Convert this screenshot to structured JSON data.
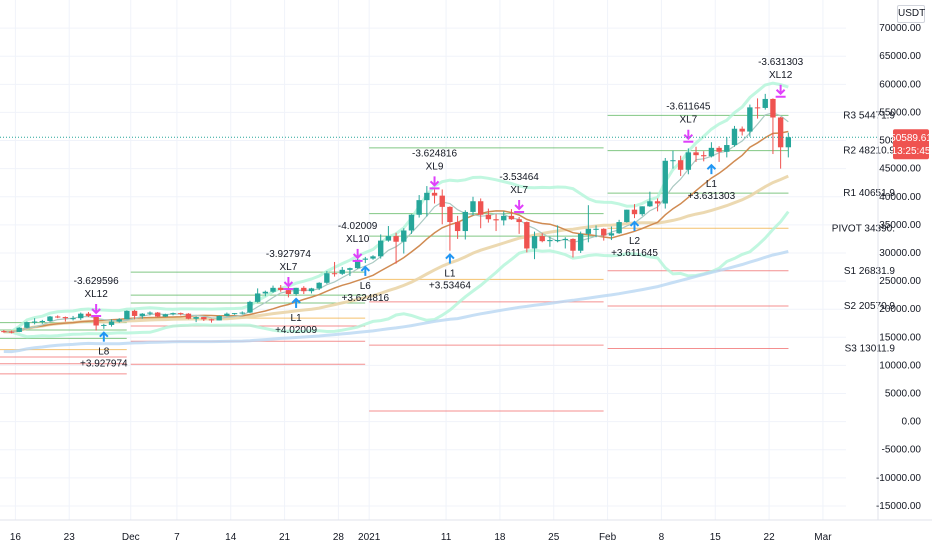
{
  "currency": "USDT",
  "price_tag": {
    "value": "50589.61",
    "countdown": "13:25:45",
    "color": "#ef5350"
  },
  "colors": {
    "up": "#26a69a",
    "down": "#ef5350",
    "buy_arrow": "#2196f3",
    "sell_arrow": "#e040fb",
    "bb": "#b2f5d8",
    "ma_fast": "#aac9c2",
    "ma_mid": "#d08b52",
    "ma_slow": "#ead5a8",
    "ma_long": "#b9d7f2",
    "pivot_r": "#4caf50",
    "pivot_p": "#f0a830",
    "pivot_s": "#f06060"
  },
  "chart_data": {
    "type": "candlestick",
    "y_axis": {
      "ylim": [
        -17500,
        75000
      ],
      "ticks": [
        "70000.00",
        "65000.00",
        "60000.00",
        "55000.00",
        "50000.00",
        "45000.00",
        "40000.00",
        "35000.00",
        "30000.00",
        "25000.00",
        "20000.00",
        "15000.00",
        "10000.00",
        "5000.00",
        "0.00",
        "-5000.00",
        "-10000.00",
        "-15000.00"
      ],
      "tick_values": [
        70000,
        65000,
        60000,
        55000,
        50000,
        45000,
        40000,
        35000,
        30000,
        25000,
        20000,
        15000,
        10000,
        5000,
        0,
        -5000,
        -10000,
        -15000
      ]
    },
    "x_axis": {
      "start": "2020-11-14",
      "end": "2021-03-04",
      "labels": [
        {
          "date": "2020-11-16",
          "text": "16"
        },
        {
          "date": "2020-11-23",
          "text": "23"
        },
        {
          "date": "2020-12-01",
          "text": "Dec"
        },
        {
          "date": "2020-12-07",
          "text": "7"
        },
        {
          "date": "2020-12-14",
          "text": "14"
        },
        {
          "date": "2020-12-21",
          "text": "21"
        },
        {
          "date": "2020-12-28",
          "text": "28"
        },
        {
          "date": "2021-01-01",
          "text": "2021"
        },
        {
          "date": "2021-01-11",
          "text": "11"
        },
        {
          "date": "2021-01-18",
          "text": "18"
        },
        {
          "date": "2021-01-25",
          "text": "25"
        },
        {
          "date": "2021-02-01",
          "text": "Feb"
        },
        {
          "date": "2021-02-08",
          "text": "8"
        },
        {
          "date": "2021-02-15",
          "text": "15"
        },
        {
          "date": "2021-02-22",
          "text": "22"
        },
        {
          "date": "2021-03-01",
          "text": "Mar"
        }
      ]
    },
    "candles": [
      [
        "2020-11-14",
        16100,
        16300,
        15800,
        16000
      ],
      [
        "2020-11-15",
        16000,
        16200,
        15700,
        15950
      ],
      [
        "2020-11-16",
        15950,
        16800,
        15900,
        16700
      ],
      [
        "2020-11-17",
        16700,
        17800,
        16600,
        17700
      ],
      [
        "2020-11-18",
        17700,
        18400,
        17300,
        17800
      ],
      [
        "2020-11-19",
        17800,
        18100,
        17400,
        17900
      ],
      [
        "2020-11-20",
        17900,
        18800,
        17800,
        18700
      ],
      [
        "2020-11-21",
        18700,
        18900,
        18400,
        18600
      ],
      [
        "2020-11-22",
        18600,
        18700,
        17800,
        18400
      ],
      [
        "2020-11-23",
        18400,
        18800,
        18000,
        18400
      ],
      [
        "2020-11-24",
        18400,
        19400,
        18100,
        19200
      ],
      [
        "2020-11-25",
        19200,
        19500,
        18600,
        18800
      ],
      [
        "2020-11-26",
        18800,
        18900,
        16200,
        17100
      ],
      [
        "2020-11-27",
        17100,
        17400,
        16500,
        17200
      ],
      [
        "2020-11-28",
        17200,
        18200,
        16900,
        17800
      ],
      [
        "2020-11-29",
        17800,
        18400,
        17600,
        18200
      ],
      [
        "2020-11-30",
        18200,
        19800,
        18200,
        19700
      ],
      [
        "2020-12-01",
        19700,
        19900,
        18200,
        18800
      ],
      [
        "2020-12-02",
        18800,
        19300,
        18300,
        19200
      ],
      [
        "2020-12-03",
        19200,
        19600,
        18900,
        19400
      ],
      [
        "2020-12-04",
        19400,
        19500,
        18600,
        18700
      ],
      [
        "2020-12-05",
        18700,
        19200,
        18600,
        19100
      ],
      [
        "2020-12-06",
        19100,
        19400,
        18900,
        19300
      ],
      [
        "2020-12-07",
        19300,
        19400,
        18900,
        19200
      ],
      [
        "2020-12-08",
        19200,
        19300,
        18200,
        18300
      ],
      [
        "2020-12-09",
        18300,
        18700,
        17700,
        18600
      ],
      [
        "2020-12-10",
        18600,
        18600,
        17900,
        18200
      ],
      [
        "2020-12-11",
        18200,
        18300,
        17600,
        18000
      ],
      [
        "2020-12-12",
        18000,
        18900,
        18000,
        18800
      ],
      [
        "2020-12-13",
        18800,
        19400,
        18700,
        19200
      ],
      [
        "2020-12-14",
        19200,
        19300,
        19000,
        19300
      ],
      [
        "2020-12-15",
        19300,
        19600,
        19100,
        19400
      ],
      [
        "2020-12-16",
        19400,
        21500,
        19300,
        21300
      ],
      [
        "2020-12-17",
        21300,
        23700,
        21200,
        22800
      ],
      [
        "2020-12-18",
        22800,
        23300,
        22300,
        23100
      ],
      [
        "2020-12-19",
        23100,
        24200,
        22900,
        23800
      ],
      [
        "2020-12-20",
        23800,
        24300,
        23100,
        23400
      ],
      [
        "2020-12-21",
        23400,
        24100,
        22100,
        22700
      ],
      [
        "2020-12-22",
        22700,
        23800,
        22400,
        23800
      ],
      [
        "2020-12-23",
        23800,
        24100,
        22700,
        23200
      ],
      [
        "2020-12-24",
        23200,
        23800,
        22800,
        23700
      ],
      [
        "2020-12-25",
        23700,
        24800,
        23400,
        24700
      ],
      [
        "2020-12-26",
        24700,
        26800,
        24500,
        26400
      ],
      [
        "2020-12-27",
        26400,
        28400,
        25800,
        26300
      ],
      [
        "2020-12-28",
        26300,
        27500,
        26100,
        27000
      ],
      [
        "2020-12-29",
        27000,
        27400,
        25900,
        27300
      ],
      [
        "2020-12-30",
        27300,
        29000,
        27200,
        28800
      ],
      [
        "2020-12-31",
        28800,
        29300,
        28200,
        29000
      ],
      [
        "2021-01-01",
        29000,
        29600,
        28800,
        29400
      ],
      [
        "2021-01-02",
        29400,
        33300,
        29000,
        32200
      ],
      [
        "2021-01-03",
        32200,
        34800,
        32000,
        33000
      ],
      [
        "2021-01-04",
        33000,
        33600,
        28100,
        32000
      ],
      [
        "2021-01-05",
        32000,
        34400,
        29900,
        34000
      ],
      [
        "2021-01-06",
        34000,
        36900,
        33400,
        36800
      ],
      [
        "2021-01-07",
        36800,
        40300,
        36300,
        39400
      ],
      [
        "2021-01-08",
        39400,
        41900,
        36500,
        40700
      ],
      [
        "2021-01-09",
        40700,
        41300,
        38800,
        40200
      ],
      [
        "2021-01-10",
        40200,
        41300,
        35100,
        38200
      ],
      [
        "2021-01-11",
        38200,
        38300,
        30400,
        35500
      ],
      [
        "2021-01-12",
        35500,
        36600,
        32500,
        33900
      ],
      [
        "2021-01-13",
        33900,
        37600,
        32400,
        37300
      ],
      [
        "2021-01-14",
        37300,
        40000,
        36700,
        39200
      ],
      [
        "2021-01-15",
        39200,
        39700,
        34400,
        36800
      ],
      [
        "2021-01-16",
        36800,
        37900,
        35400,
        36000
      ],
      [
        "2021-01-17",
        36000,
        36900,
        33900,
        35800
      ],
      [
        "2021-01-18",
        35800,
        37400,
        34900,
        36600
      ],
      [
        "2021-01-19",
        36600,
        37800,
        35900,
        36000
      ],
      [
        "2021-01-20",
        36000,
        36400,
        33400,
        35500
      ],
      [
        "2021-01-21",
        35500,
        35600,
        30100,
        30800
      ],
      [
        "2021-01-22",
        30800,
        33800,
        28900,
        33000
      ],
      [
        "2021-01-23",
        33000,
        33500,
        31900,
        32100
      ],
      [
        "2021-01-24",
        32100,
        32900,
        31100,
        32300
      ],
      [
        "2021-01-25",
        32300,
        34900,
        31900,
        32300
      ],
      [
        "2021-01-26",
        32300,
        32800,
        30800,
        32500
      ],
      [
        "2021-01-27",
        32500,
        32600,
        29200,
        30400
      ],
      [
        "2021-01-28",
        30400,
        33800,
        30000,
        33400
      ],
      [
        "2021-01-29",
        33400,
        38500,
        31900,
        34300
      ],
      [
        "2021-01-30",
        34300,
        34900,
        32800,
        34300
      ],
      [
        "2021-01-31",
        34300,
        34400,
        32200,
        33100
      ],
      [
        "2021-02-01",
        33100,
        34700,
        32300,
        33500
      ],
      [
        "2021-02-02",
        33500,
        35900,
        33400,
        35500
      ],
      [
        "2021-02-03",
        35500,
        37700,
        35400,
        37700
      ],
      [
        "2021-02-04",
        37700,
        38700,
        36200,
        36900
      ],
      [
        "2021-02-05",
        36900,
        38300,
        36600,
        38300
      ],
      [
        "2021-02-06",
        38300,
        40900,
        38200,
        39200
      ],
      [
        "2021-02-07",
        39200,
        39700,
        37400,
        38800
      ],
      [
        "2021-02-08",
        38800,
        46900,
        37900,
        46400
      ],
      [
        "2021-02-09",
        46400,
        48200,
        45000,
        46500
      ],
      [
        "2021-02-10",
        46500,
        47300,
        43700,
        44800
      ],
      [
        "2021-02-11",
        44800,
        48600,
        44000,
        47900
      ],
      [
        "2021-02-12",
        47900,
        48900,
        46200,
        47400
      ],
      [
        "2021-02-13",
        47400,
        48100,
        46300,
        47200
      ],
      [
        "2021-02-14",
        47200,
        49700,
        47000,
        48700
      ],
      [
        "2021-02-15",
        48700,
        49000,
        46200,
        48000
      ],
      [
        "2021-02-16",
        48000,
        50600,
        47000,
        49200
      ],
      [
        "2021-02-17",
        49200,
        52600,
        48900,
        52100
      ],
      [
        "2021-02-18",
        52100,
        52500,
        50900,
        51600
      ],
      [
        "2021-02-19",
        51600,
        56400,
        50700,
        55900
      ],
      [
        "2021-02-20",
        55900,
        57500,
        53900,
        55800
      ],
      [
        "2021-02-21",
        55800,
        58300,
        55500,
        57400
      ],
      [
        "2021-02-22",
        57400,
        57500,
        47600,
        54100
      ],
      [
        "2021-02-23",
        54100,
        54200,
        45000,
        48800
      ],
      [
        "2021-02-24",
        48800,
        51400,
        47000,
        50590
      ]
    ],
    "pivot_levels": [
      {
        "name": "R3",
        "text": "R3 54471.9",
        "value": 54471.9
      },
      {
        "name": "R2",
        "text": "R2 48210.9",
        "value": 48210.9
      },
      {
        "name": "R1",
        "text": "R1 40651.9",
        "value": 40651.9
      },
      {
        "name": "P",
        "text": "PIVOT 34390.",
        "value": 34390
      },
      {
        "name": "S1",
        "text": "S1 26831.9",
        "value": 26831.9
      },
      {
        "name": "S2",
        "text": "S2 20570.9",
        "value": 20570.9
      },
      {
        "name": "S3",
        "text": "S3 13011.9",
        "value": 13011.9
      }
    ],
    "sell_signals": [
      {
        "date": "2020-11-26",
        "price": 19500,
        "value": "-3.629596",
        "tag": "XL12"
      },
      {
        "date": "2020-12-21",
        "price": 24300,
        "value": "-3.927974",
        "tag": "XL7"
      },
      {
        "date": "2020-12-30",
        "price": 29300,
        "value": "-4.02009",
        "tag": "XL10"
      },
      {
        "date": "2021-01-09",
        "price": 42200,
        "value": "-3.624816",
        "tag": "XL9"
      },
      {
        "date": "2021-01-20",
        "price": 38000,
        "value": "-3.53464",
        "tag": "XL7"
      },
      {
        "date": "2021-02-11",
        "price": 50500,
        "value": "-3.611645",
        "tag": "XL7"
      },
      {
        "date": "2021-02-23",
        "price": 58500,
        "value": "-3.631303",
        "tag": "XL12"
      }
    ],
    "buy_signals": [
      {
        "date": "2020-11-27",
        "price": 16000,
        "label": "L8",
        "value": "+3.927974"
      },
      {
        "date": "2020-12-22",
        "price": 22000,
        "label": "L1",
        "value": "+4.02009"
      },
      {
        "date": "2020-12-31",
        "price": 27700,
        "label": "L6",
        "value": "+3.624816"
      },
      {
        "date": "2021-01-11",
        "price": 29900,
        "label": "L1",
        "value": "+3.53464"
      },
      {
        "date": "2021-02-04",
        "price": 35700,
        "label": "L2",
        "value": "+3.611645"
      },
      {
        "date": "2021-02-14",
        "price": 45800,
        "label": "L1",
        "value": "+3.631303"
      }
    ]
  }
}
